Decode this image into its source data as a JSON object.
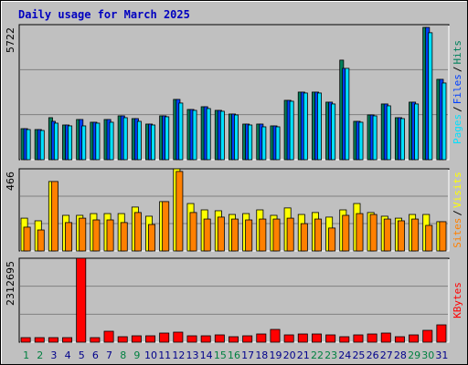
{
  "chart_data": [
    {
      "type": "bar",
      "title": "Daily usage for March 2025",
      "series": [
        {
          "name": "Hits",
          "color": "#00805c",
          "values": [
            1315,
            1277,
            1780,
            1470,
            1703,
            1587,
            1703,
            1857,
            1741,
            1509,
            1857,
            2554,
            2128,
            2244,
            2090,
            1935,
            1509,
            1509,
            1432,
            2515,
            2864,
            2864,
            2438,
            4218,
            1625,
            1896,
            2361,
            1780,
            2438,
            5606,
            3405
          ]
        },
        {
          "name": "Files",
          "color": "#0040ff",
          "values": [
            1315,
            1277,
            1625,
            1470,
            1703,
            1587,
            1703,
            1857,
            1741,
            1509,
            1857,
            2554,
            2128,
            2244,
            2090,
            1935,
            1509,
            1509,
            1432,
            2515,
            2864,
            2864,
            2438,
            3870,
            1625,
            1896,
            2361,
            1780,
            2438,
            5606,
            3405
          ]
        },
        {
          "name": "Pages",
          "color": "#00e0ff",
          "values": [
            1277,
            1238,
            1548,
            1432,
            1432,
            1548,
            1587,
            1780,
            1625,
            1470,
            1819,
            2400,
            2090,
            2167,
            2051,
            1896,
            1470,
            1393,
            1393,
            2477,
            2825,
            2825,
            2361,
            3870,
            1587,
            1857,
            2283,
            1741,
            2361,
            5379,
            3250
          ]
        }
      ],
      "ylim": [
        0,
        5722
      ],
      "yticks": [
        {
          "value": 1907.33,
          "label": null
        },
        {
          "value": 3814.67,
          "label": null
        },
        5722
      ],
      "legend_separator": "/"
    },
    {
      "type": "bar",
      "series": [
        {
          "name": "Visits",
          "color": "#ffff00",
          "values": [
            186,
            171,
            394,
            202,
            202,
            212,
            212,
            212,
            249,
            197,
            280,
            466,
            269,
            233,
            228,
            207,
            212,
            233,
            202,
            244,
            207,
            218,
            192,
            233,
            269,
            218,
            197,
            186,
            207,
            207,
            166
          ]
        },
        {
          "name": "Sites",
          "color": "#ff8000",
          "values": [
            135,
            119,
            394,
            161,
            186,
            176,
            176,
            161,
            218,
            150,
            280,
            451,
            218,
            181,
            192,
            181,
            176,
            181,
            181,
            186,
            155,
            181,
            130,
            202,
            212,
            207,
            181,
            171,
            181,
            145,
            166
          ]
        }
      ],
      "ylim": [
        0,
        466
      ],
      "yticks": [
        {
          "value": 155.33,
          "label": null
        },
        {
          "value": 310.67,
          "label": null
        },
        466
      ],
      "legend_separator": "/"
    },
    {
      "type": "bar",
      "categories": [
        "1",
        "2",
        "3",
        "4",
        "5",
        "6",
        "7",
        "8",
        "9",
        "10",
        "11",
        "12",
        "13",
        "14",
        "15",
        "16",
        "17",
        "18",
        "19",
        "20",
        "21",
        "22",
        "23",
        "24",
        "25",
        "26",
        "27",
        "28",
        "29",
        "30",
        "31"
      ],
      "category_colors": [
        "#008040",
        "#008040",
        "#00008b",
        "#00008b",
        "#00008b",
        "#00008b",
        "#00008b",
        "#008040",
        "#008040",
        "#00008b",
        "#00008b",
        "#00008b",
        "#00008b",
        "#00008b",
        "#008040",
        "#008040",
        "#00008b",
        "#00008b",
        "#00008b",
        "#00008b",
        "#00008b",
        "#008040",
        "#008040",
        "#00008b",
        "#00008b",
        "#00008b",
        "#00008b",
        "#00008b",
        "#008040",
        "#008040",
        "#00008b"
      ],
      "series": [
        {
          "name": "KBytes",
          "color": "#ff0000",
          "values": [
            125690,
            125690,
            125690,
            125690,
            2312695,
            125690,
            301656,
            150828,
            175966,
            175966,
            251380,
            276518,
            175966,
            175966,
            201104,
            150828,
            175966,
            226242,
            351932,
            201104,
            226242,
            226242,
            201104,
            150828,
            201104,
            226242,
            251380,
            150828,
            201104,
            326794,
            477622
          ]
        }
      ],
      "ylim": [
        0,
        2312695
      ],
      "yticks": [
        {
          "value": 770898.33,
          "label": null
        },
        {
          "value": 1541796.67,
          "label": null
        },
        2312695
      ]
    }
  ]
}
